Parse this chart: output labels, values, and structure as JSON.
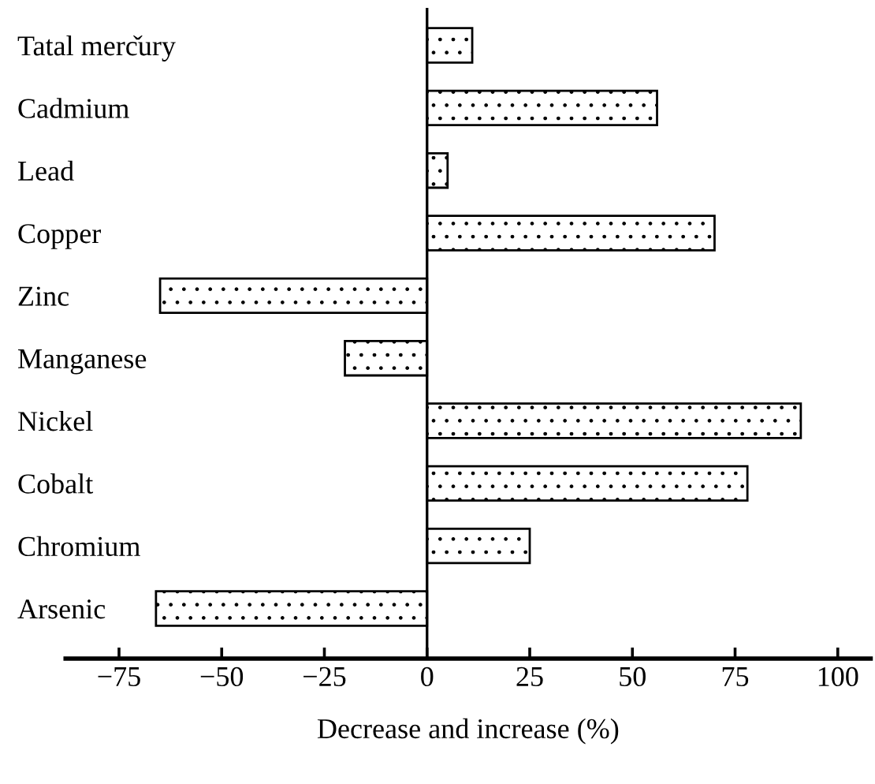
{
  "chart_data": {
    "type": "bar",
    "orientation": "horizontal",
    "xlabel": "Decrease and increase (%)",
    "categories": [
      "Tatal merčury",
      "Cadmium",
      "Lead",
      "Copper",
      "Zinc",
      "Manganese",
      "Nickel",
      "Cobalt",
      "Chromium",
      "Arsenic"
    ],
    "values": [
      11,
      56,
      5,
      70,
      -65,
      -20,
      91,
      78,
      25,
      -66
    ],
    "xlim": [
      -88,
      108
    ],
    "xticks": [
      {
        "value": -75,
        "label": "−75"
      },
      {
        "value": -50,
        "label": "−50"
      },
      {
        "value": -25,
        "label": "−25"
      },
      0,
      25,
      50,
      75,
      100
    ],
    "ref_lines": [
      {
        "axis": "x",
        "value": 0
      }
    ],
    "grid": false,
    "legend": false
  }
}
